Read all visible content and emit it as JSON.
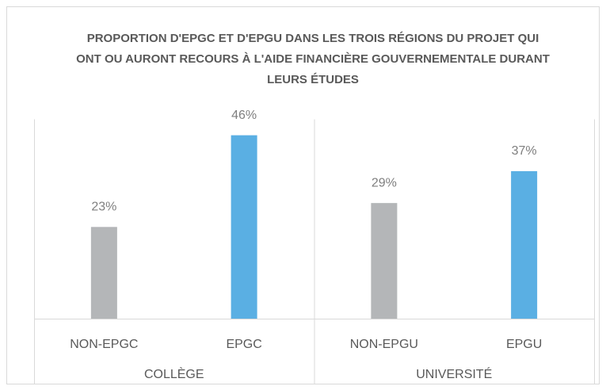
{
  "chart_data": {
    "type": "bar",
    "title": "PROPORTION D'EPGC ET D'EPGU DANS LES TROIS RÉGIONS DU PROJET QUI ONT OU AURONT RECOURS À L'AIDE FINANCIÈRE GOUVERNEMENTALE DURANT LEURS ÉTUDES",
    "categories": [
      "NON-EPGC",
      "EPGC",
      "NON-EPGU",
      "EPGU"
    ],
    "groups": [
      "COLLÈGE",
      "UNIVERSITÉ"
    ],
    "values": [
      23,
      46,
      29,
      37
    ],
    "value_labels": [
      "23%",
      "46%",
      "29%",
      "37%"
    ],
    "colors": [
      "#b4b6b8",
      "#5aafe3",
      "#b4b6b8",
      "#5aafe3"
    ],
    "ylim": [
      0,
      50
    ]
  }
}
